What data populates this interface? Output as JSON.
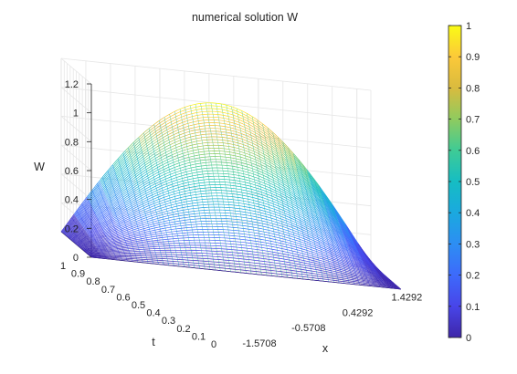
{
  "chart_data": {
    "type": "surface-mesh",
    "title": "numerical solution W",
    "xlabel": "x",
    "ylabel": "t",
    "zlabel": "W",
    "x_ticks": [
      "-1.5708",
      "-0.5708",
      "0.4292",
      "1.4292"
    ],
    "x_tick_values": [
      -1.5708,
      -0.5708,
      0.4292,
      1.4292
    ],
    "xlim": [
      -1.5708,
      1.5708
    ],
    "t_ticks": [
      "0",
      "0.1",
      "0.2",
      "0.3",
      "0.4",
      "0.5",
      "0.6",
      "0.7",
      "0.8",
      "0.9",
      "1"
    ],
    "t_tick_values": [
      0,
      0.1,
      0.2,
      0.3,
      0.4,
      0.5,
      0.6,
      0.7,
      0.8,
      0.9,
      1
    ],
    "tlim": [
      0,
      1
    ],
    "z_ticks": [
      "0",
      "0.2",
      "0.4",
      "0.6",
      "0.8",
      "1",
      "1.2"
    ],
    "z_tick_values": [
      0,
      0.2,
      0.4,
      0.6,
      0.8,
      1,
      1.2
    ],
    "zlim": [
      0,
      1.2
    ],
    "colorbar": {
      "ticks": [
        "0",
        "0.1",
        "0.2",
        "0.3",
        "0.4",
        "0.5",
        "0.6",
        "0.7",
        "0.8",
        "0.9",
        "1"
      ],
      "tick_values": [
        0,
        0.1,
        0.2,
        0.3,
        0.4,
        0.5,
        0.6,
        0.7,
        0.8,
        0.9,
        1
      ],
      "range": [
        0,
        1
      ],
      "colormap": "parula"
    },
    "surface": {
      "function": "W(x,t) = t * cos(x)",
      "peak": {
        "x": 0,
        "t": 1,
        "W": 1
      },
      "x_samples": 60,
      "t_samples": 60
    },
    "grid": true
  }
}
